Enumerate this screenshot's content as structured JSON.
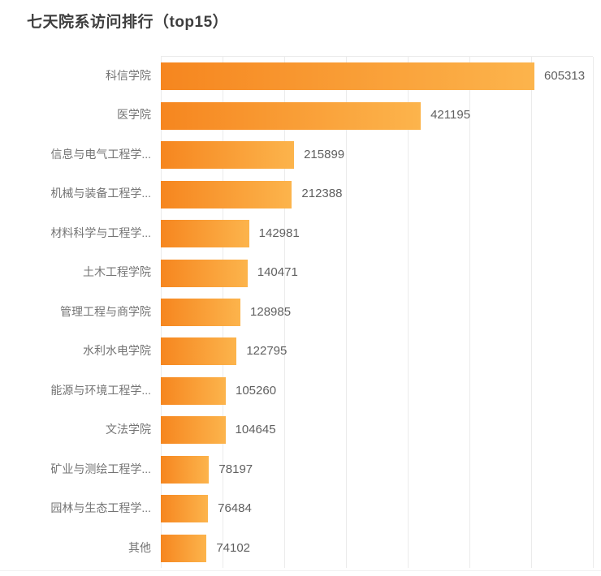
{
  "chart_data": {
    "type": "bar",
    "orientation": "horizontal",
    "title": "七天院系访问排行（top15）",
    "categories": [
      "科信学院",
      "医学院",
      "信息与电气工程学...",
      "机械与装备工程学...",
      "材料科学与工程学...",
      "土木工程学院",
      "管理工程与商学院",
      "水利水电学院",
      "能源与环境工程学...",
      "文法学院",
      "矿业与测绘工程学...",
      "园林与生态工程学...",
      "其他"
    ],
    "values": [
      605313,
      421195,
      215899,
      212388,
      142981,
      140471,
      128985,
      122795,
      105260,
      104645,
      78197,
      76484,
      74102
    ],
    "xlim": [
      0,
      700000
    ],
    "grid_interval": 100000,
    "grid": true,
    "axis_tick_labels_visible": false,
    "value_label_position": "right-of-bar",
    "colors": {
      "background": "#ffffff",
      "bar_gradient_start": "#f6861f",
      "bar_gradient_end": "#fcb44c",
      "gridline": "#ebebeb",
      "title_text": "#3e3e3e",
      "category_text": "#747474",
      "value_text": "#606060"
    }
  }
}
